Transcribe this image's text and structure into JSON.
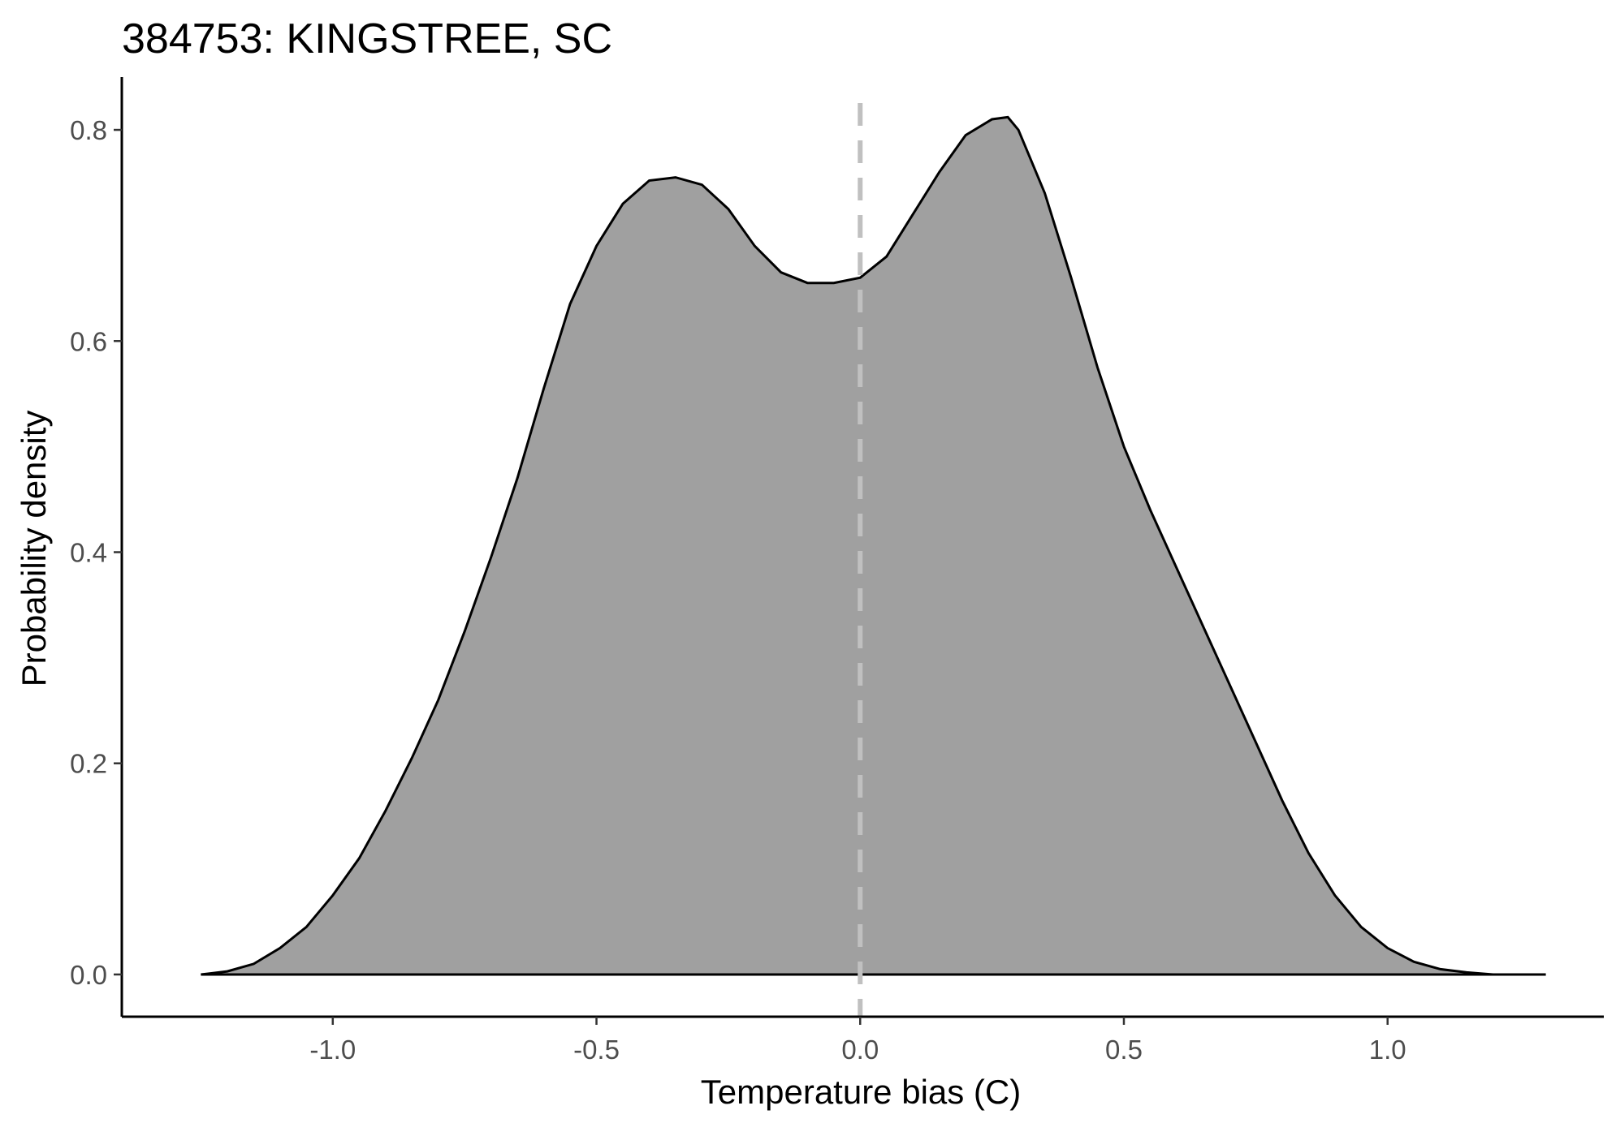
{
  "chart_data": {
    "type": "area",
    "title": "384753: KINGSTREE, SC",
    "xlabel": "Temperature bias (C)",
    "ylabel": "Probability density",
    "xlim": [
      -1.4,
      1.41
    ],
    "ylim": [
      -0.04,
      0.85
    ],
    "x_ticks": [
      -1.0,
      -0.5,
      0.0,
      0.5,
      1.0
    ],
    "x_tick_labels": [
      "-1.0",
      "-0.5",
      "0.0",
      "0.5",
      "1.0"
    ],
    "y_ticks": [
      0.0,
      0.2,
      0.4,
      0.6,
      0.8
    ],
    "y_tick_labels": [
      "0.0",
      "0.2",
      "0.4",
      "0.6",
      "0.8"
    ],
    "grid": false,
    "reference_line": {
      "x": 0.0,
      "style": "dashed",
      "color": "#c0c0c0"
    },
    "fill_color": "#a0a0a0",
    "line_color": "#000000",
    "series": [
      {
        "x": [
          -1.25,
          -1.2,
          -1.15,
          -1.1,
          -1.05,
          -1.0,
          -0.95,
          -0.9,
          -0.85,
          -0.8,
          -0.75,
          -0.7,
          -0.65,
          -0.6,
          -0.55,
          -0.5,
          -0.45,
          -0.4,
          -0.35,
          -0.3,
          -0.25,
          -0.2,
          -0.15,
          -0.1,
          -0.05,
          0.0,
          0.05,
          0.1,
          0.15,
          0.2,
          0.25,
          0.28,
          0.3,
          0.35,
          0.4,
          0.45,
          0.5,
          0.55,
          0.6,
          0.65,
          0.7,
          0.75,
          0.8,
          0.85,
          0.9,
          0.95,
          1.0,
          1.05,
          1.1,
          1.15,
          1.2,
          1.25,
          1.3
        ],
        "y": [
          0.0,
          0.003,
          0.01,
          0.025,
          0.045,
          0.075,
          0.11,
          0.155,
          0.205,
          0.26,
          0.325,
          0.395,
          0.47,
          0.555,
          0.635,
          0.69,
          0.73,
          0.752,
          0.755,
          0.748,
          0.725,
          0.69,
          0.665,
          0.655,
          0.655,
          0.66,
          0.68,
          0.72,
          0.76,
          0.795,
          0.81,
          0.812,
          0.8,
          0.74,
          0.66,
          0.575,
          0.5,
          0.44,
          0.385,
          0.33,
          0.275,
          0.22,
          0.165,
          0.115,
          0.075,
          0.045,
          0.025,
          0.012,
          0.005,
          0.002,
          0.0,
          0.0,
          0.0
        ]
      }
    ]
  }
}
